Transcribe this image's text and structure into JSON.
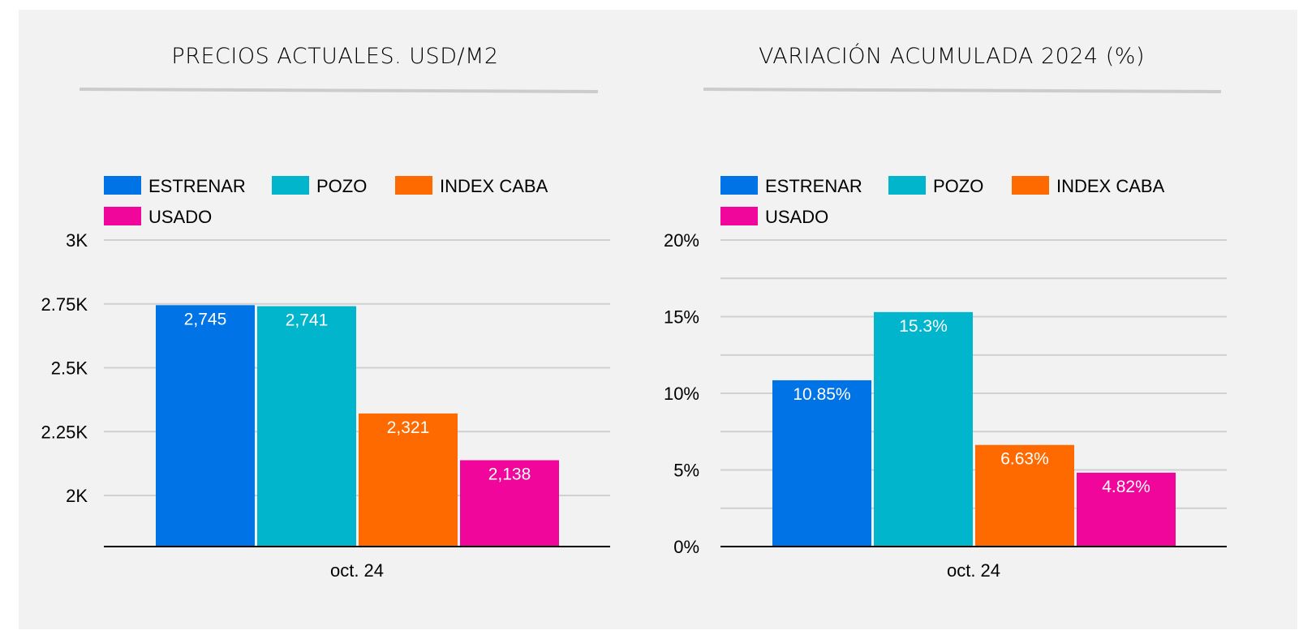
{
  "colors": {
    "background": "#f2f2f2",
    "title_rule": "#cccccc",
    "grid": "#d0d0d0",
    "axis": "#000000",
    "text": "#000000",
    "data_label": "#ffffff"
  },
  "chart_data": [
    {
      "type": "bar",
      "title": "PRECIOS ACTUALES. USD/M2",
      "categories": [
        "oct. 24"
      ],
      "series": [
        {
          "name": "ESTRENAR",
          "color": "#0073e6",
          "values": [
            2745
          ],
          "label": "2,745"
        },
        {
          "name": "POZO",
          "color": "#00b5cc",
          "values": [
            2741
          ],
          "label": "2,741"
        },
        {
          "name": "INDEX CABA",
          "color": "#ff6a00",
          "values": [
            2321
          ],
          "label": "2,321"
        },
        {
          "name": "USADO",
          "color": "#f0069a",
          "values": [
            2138
          ],
          "label": "2,138"
        }
      ],
      "ylim": [
        1800,
        3000
      ],
      "yticks": [
        {
          "value": 2000,
          "label": "2K"
        },
        {
          "value": 2250,
          "label": "2.25K"
        },
        {
          "value": 2500,
          "label": "2.5K"
        },
        {
          "value": 2750,
          "label": "2.75K"
        },
        {
          "value": 3000,
          "label": "3K"
        }
      ],
      "minor_gridlines": [],
      "legend_position": "top-left",
      "grid": true
    },
    {
      "type": "bar",
      "title": "VARIACIÓN ACUMULADA 2024 (%)",
      "categories": [
        "oct. 24"
      ],
      "series": [
        {
          "name": "ESTRENAR",
          "color": "#0073e6",
          "values": [
            10.85
          ],
          "label": "10.85%"
        },
        {
          "name": "POZO",
          "color": "#00b5cc",
          "values": [
            15.3
          ],
          "label": "15.3%"
        },
        {
          "name": "INDEX CABA",
          "color": "#ff6a00",
          "values": [
            6.63
          ],
          "label": "6.63%"
        },
        {
          "name": "USADO",
          "color": "#f0069a",
          "values": [
            4.82
          ],
          "label": "4.82%"
        }
      ],
      "ylim": [
        0,
        20
      ],
      "yticks": [
        {
          "value": 0,
          "label": "0%"
        },
        {
          "value": 5,
          "label": "5%"
        },
        {
          "value": 10,
          "label": "10%"
        },
        {
          "value": 15,
          "label": "15%"
        },
        {
          "value": 20,
          "label": "20%"
        }
      ],
      "minor_gridlines": [
        2.5,
        7.5,
        12.5,
        17.5
      ],
      "legend_position": "top-left",
      "grid": true
    }
  ]
}
